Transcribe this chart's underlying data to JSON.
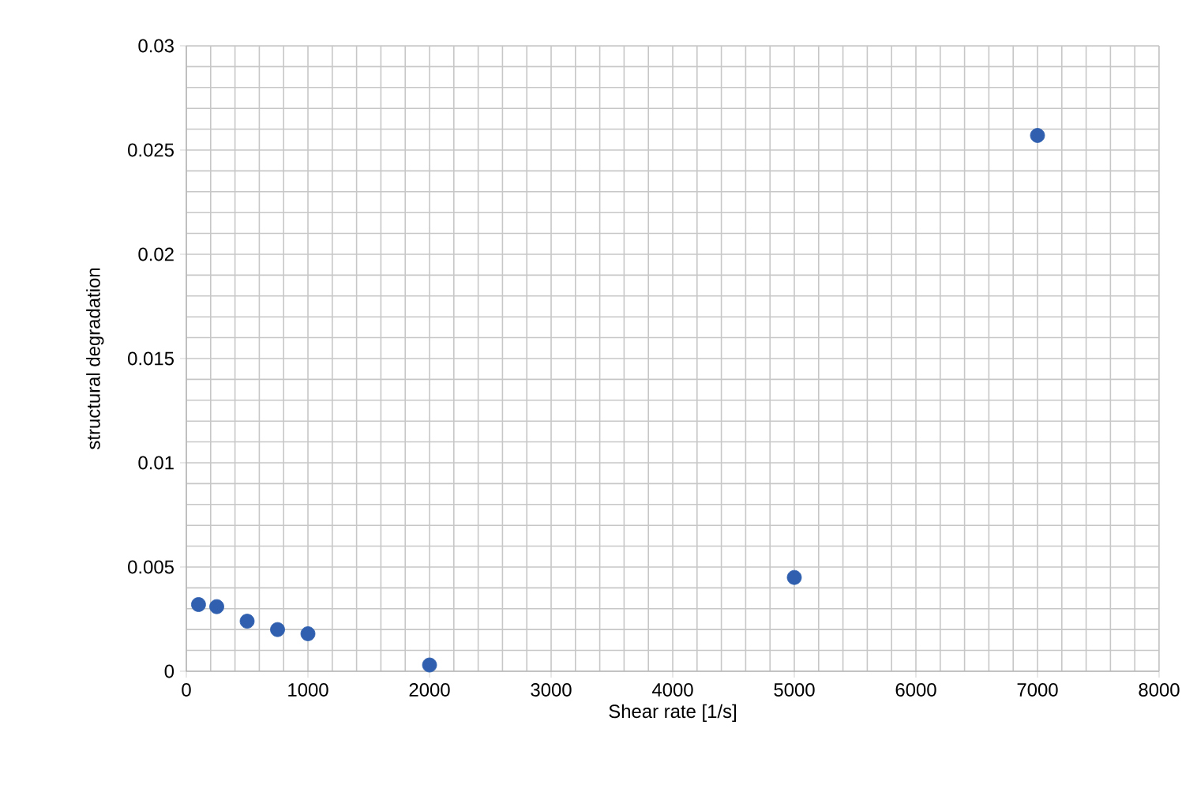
{
  "chart_data": {
    "type": "scatter",
    "xlabel": "Shear rate [1/s]",
    "ylabel": "structural degradation",
    "x": [
      100,
      250,
      500,
      750,
      1000,
      2000,
      5000,
      7000
    ],
    "series": [
      {
        "color": "#2f5fae",
        "values": [
          0.0032,
          0.0031,
          0.0024,
          0.002,
          0.0018,
          0.0003,
          0.0045,
          0.0257
        ]
      }
    ],
    "xlim": [
      0,
      8000
    ],
    "xticks": [
      0,
      1000,
      2000,
      3000,
      4000,
      5000,
      6000,
      7000,
      8000
    ],
    "ylim": [
      0,
      0.03
    ],
    "yticks": [
      0,
      0.005,
      0.01,
      0.015,
      0.02,
      0.025,
      0.03
    ],
    "grid": true,
    "marker": "circle",
    "legend": false
  }
}
